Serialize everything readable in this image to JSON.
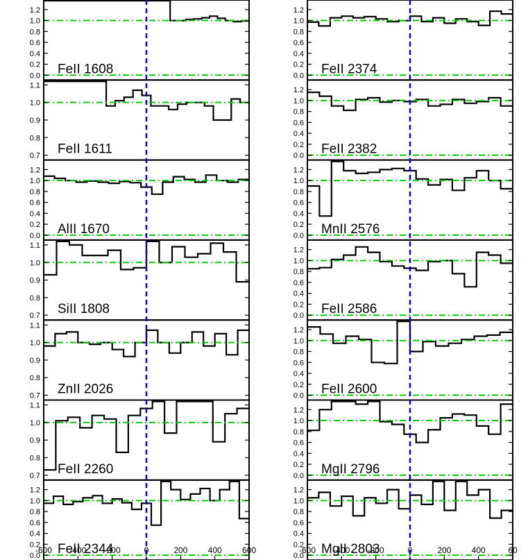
{
  "chart_data": {
    "type": "line",
    "style": {
      "spectrum_color": "#000000",
      "continuum_color": "#00cc00",
      "zero_velocity_color": "#0000dd"
    },
    "x_axis": {
      "range": [
        -600,
        600
      ],
      "tick_labels": [
        "-600",
        "-400",
        "-200",
        "0",
        "200",
        "400",
        "600"
      ],
      "last_tick_label_right_column": "60"
    },
    "columns": [
      {
        "panels": [
          {
            "label": "FeII 1608",
            "ylim": [
              0.0,
              1.35
            ],
            "tick_labels": [
              "0.0",
              "0.2",
              "0.4",
              "0.6",
              "0.8",
              "1.0",
              "1.2"
            ],
            "flux": [
              1.6,
              1.6,
              1.6,
              1.6,
              1.6,
              1.6,
              1.6,
              1.6,
              1.6,
              1.6,
              1.6,
              1.6,
              1.6,
              1.6,
              1.6,
              1.6,
              1.0,
              1.0,
              1.02,
              1.03,
              1.05,
              1.08,
              1.04,
              1.0,
              0.98,
              0.99
            ]
          },
          {
            "label": "FeII 1611",
            "ylim": [
              0.7,
              1.12
            ],
            "tick_labels": [
              "0.7",
              "0.8",
              "0.9",
              "1.0",
              "1.1"
            ],
            "flux": [
              1.12,
              1.12,
              1.12,
              1.12,
              1.12,
              1.12,
              1.12,
              0.98,
              1.01,
              1.03,
              1.07,
              1.04,
              0.98,
              0.98,
              0.96,
              0.99,
              1.0,
              1.0,
              0.98,
              0.9,
              0.9,
              1.02,
              1.0
            ]
          },
          {
            "label": "AlII 1670",
            "ylim": [
              0.0,
              1.35
            ],
            "tick_labels": [
              "0.0",
              "0.2",
              "0.4",
              "0.6",
              "0.8",
              "1.0",
              "1.2"
            ],
            "flux": [
              1.08,
              1.04,
              1.0,
              0.97,
              0.99,
              0.97,
              0.95,
              0.98,
              0.96,
              0.88,
              0.75,
              0.97,
              1.07,
              1.02,
              0.97,
              1.1,
              1.0,
              0.97,
              1.02
            ]
          },
          {
            "label": "SiII 1808",
            "ylim": [
              0.7,
              1.12
            ],
            "tick_labels": [
              "0.7",
              "0.8",
              "0.9",
              "1.0",
              "1.1"
            ],
            "flux": [
              0.93,
              1.12,
              1.1,
              1.04,
              1.04,
              1.07,
              0.96,
              0.97,
              1.12,
              1.0,
              1.09,
              1.03,
              1.05,
              1.11,
              1.06,
              0.89
            ]
          },
          {
            "label": "ZnII 2026",
            "ylim": [
              0.7,
              1.12
            ],
            "tick_labels": [
              "0.7",
              "0.8",
              "0.9",
              "1.0",
              "1.1"
            ],
            "flux": [
              0.98,
              1.05,
              1.06,
              1.0,
              0.99,
              1.0,
              0.96,
              0.92,
              1.0,
              1.07,
              1.0,
              0.94,
              1.0,
              1.06,
              0.98,
              1.05,
              0.93,
              1.07
            ]
          },
          {
            "label": "FeII 2260",
            "ylim": [
              0.7,
              1.12
            ],
            "tick_labels": [
              "0.7",
              "0.8",
              "0.9",
              "1.0",
              "1.1"
            ],
            "flux": [
              0.73,
              1.01,
              1.03,
              0.97,
              1.04,
              1.02,
              0.83,
              1.04,
              1.08,
              1.12,
              0.94,
              1.12,
              1.12,
              1.12,
              0.89,
              1.05,
              1.08
            ]
          },
          {
            "label": "FeII 2344",
            "ylim": [
              0.0,
              1.35
            ],
            "tick_labels": [
              "0.0",
              "0.2",
              "0.4",
              "0.6",
              "0.8",
              "1.0",
              "1.2"
            ],
            "flux": [
              0.95,
              1.08,
              0.93,
              0.98,
              1.05,
              1.09,
              0.95,
              1.03,
              0.96,
              0.84,
              0.95,
              0.55,
              1.35,
              1.2,
              1.02,
              1.12,
              1.22,
              1.0,
              1.2,
              1.35,
              0.67
            ]
          }
        ]
      },
      {
        "panels": [
          {
            "label": "FeII 2374",
            "ylim": [
              0.0,
              1.35
            ],
            "tick_labels": [
              "0.0",
              "0.2",
              "0.4",
              "0.6",
              "0.8",
              "1.0",
              "1.2"
            ],
            "flux": [
              0.97,
              0.9,
              1.05,
              1.08,
              1.05,
              1.07,
              1.03,
              0.98,
              1.0,
              1.08,
              0.98,
              1.05,
              0.95,
              1.03,
              0.98,
              0.91,
              1.17,
              1.12
            ]
          },
          {
            "label": "FeII 2382",
            "ylim": [
              0.0,
              1.35
            ],
            "tick_labels": [
              "0.0",
              "0.2",
              "0.4",
              "0.6",
              "0.8",
              "1.0",
              "1.2"
            ],
            "flux": [
              1.15,
              1.08,
              0.9,
              0.82,
              1.02,
              1.05,
              0.97,
              1.0,
              0.98,
              1.02,
              0.9,
              0.93,
              1.02,
              0.95,
              0.98,
              1.05,
              0.9
            ]
          },
          {
            "label": "MnII 2576",
            "ylim": [
              0.0,
              1.35
            ],
            "tick_labels": [
              "0.0",
              "0.2",
              "0.4",
              "0.6",
              "0.8",
              "1.0",
              "1.2"
            ],
            "flux": [
              0.9,
              0.35,
              1.35,
              1.18,
              1.13,
              1.15,
              1.2,
              1.22,
              1.18,
              1.03,
              0.92,
              1.02,
              0.82,
              1.05,
              1.18,
              1.0,
              0.85
            ]
          },
          {
            "label": "FeII 2586",
            "ylim": [
              0.0,
              1.35
            ],
            "tick_labels": [
              "0.0",
              "0.2",
              "0.4",
              "0.6",
              "0.8",
              "1.0",
              "1.2"
            ],
            "flux": [
              0.85,
              0.87,
              1.02,
              1.1,
              1.25,
              1.15,
              0.98,
              0.9,
              0.86,
              0.82,
              0.98,
              1.0,
              0.76,
              0.52,
              1.15,
              1.1,
              0.95
            ]
          },
          {
            "label": "FeII 2600",
            "ylim": [
              0.0,
              1.35
            ],
            "tick_labels": [
              "0.0",
              "0.2",
              "0.4",
              "0.6",
              "0.8",
              "1.0",
              "1.2"
            ],
            "flux": [
              1.25,
              1.12,
              0.95,
              1.08,
              1.02,
              0.6,
              0.58,
              1.35,
              0.8,
              0.98,
              0.9,
              0.95,
              1.02,
              1.08,
              1.1,
              1.15
            ]
          },
          {
            "label": "MgII 2796",
            "ylim": [
              0.0,
              1.35
            ],
            "tick_labels": [
              "0.0",
              "0.2",
              "0.4",
              "0.6",
              "0.8",
              "1.0",
              "1.2"
            ],
            "flux": [
              0.82,
              1.2,
              1.35,
              1.35,
              1.3,
              1.35,
              0.98,
              0.93,
              0.75,
              0.6,
              0.83,
              1.05,
              1.12,
              1.1,
              0.9,
              0.75,
              1.3
            ]
          },
          {
            "label": "MgII 2803",
            "ylim": [
              0.0,
              1.35
            ],
            "tick_labels": [
              "0.0",
              "0.2",
              "0.4",
              "0.6",
              "0.8",
              "1.0",
              "1.2"
            ],
            "flux": [
              1.05,
              1.15,
              0.9,
              1.08,
              0.72,
              1.05,
              0.95,
              1.2,
              0.85,
              1.1,
              0.93,
              1.35,
              0.82,
              1.35,
              1.1,
              1.2,
              0.68,
              0.82
            ]
          }
        ]
      }
    ]
  }
}
